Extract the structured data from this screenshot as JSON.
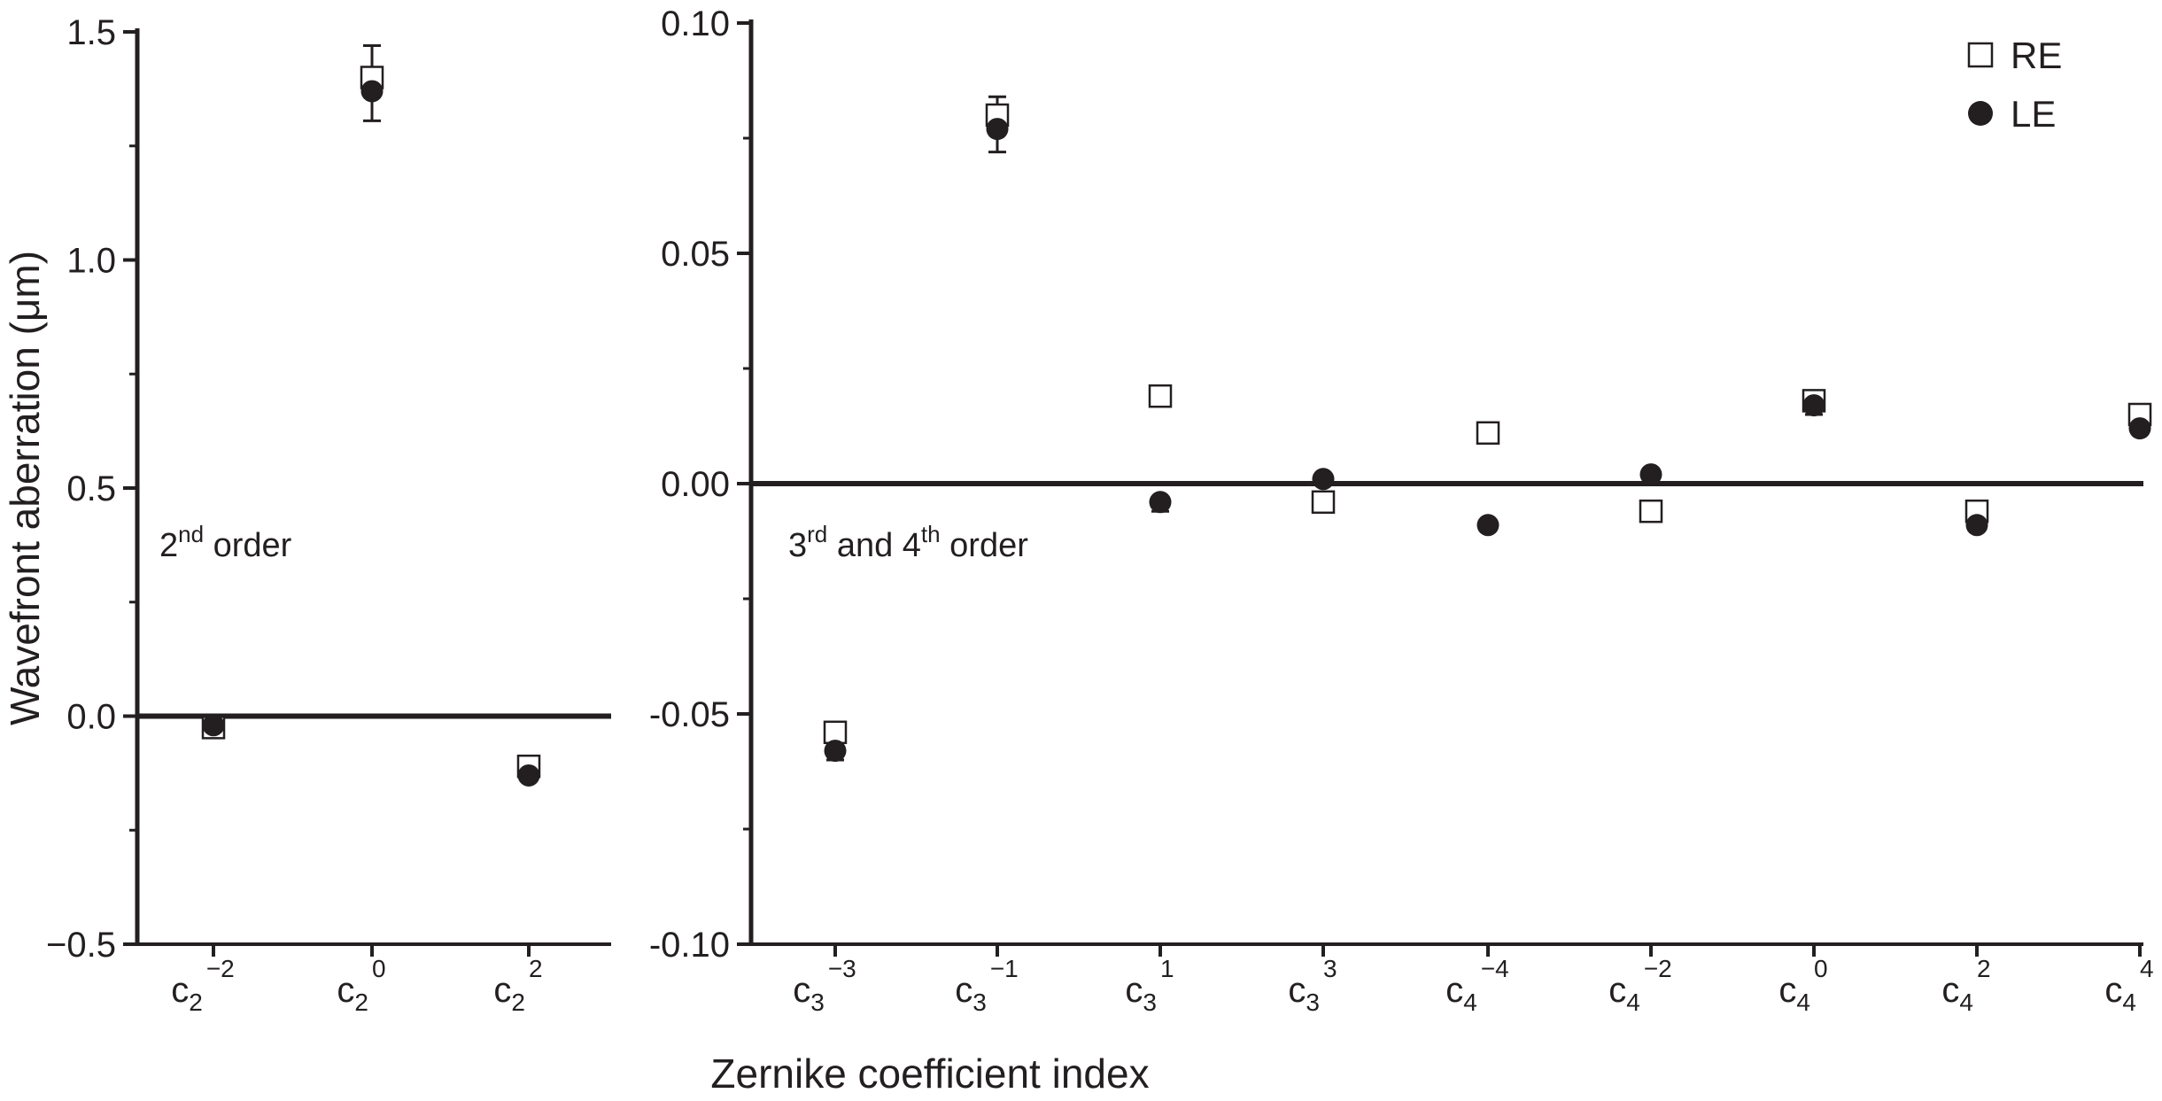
{
  "chart_data": [
    {
      "type": "scatter",
      "panel": "left",
      "ylabel": "Wavefront aberration (μm)",
      "ylim": [
        -0.5,
        1.5
      ],
      "yticks": [
        -0.5,
        0.0,
        0.5,
        1.0,
        1.5
      ],
      "ytick_labels": [
        "−0.5",
        "0.0",
        "0.5",
        "1.0",
        "1.5"
      ],
      "zero_line": true,
      "categories": [
        {
          "base": "c",
          "sub": "2",
          "sup": "−2"
        },
        {
          "base": "c",
          "sub": "2",
          "sup": "0"
        },
        {
          "base": "c",
          "sub": "2",
          "sup": "2"
        }
      ],
      "annotation": {
        "text": "2",
        "sup": "nd",
        "rest": " order"
      },
      "series": [
        {
          "name": "RE",
          "marker": "open-square",
          "values": [
            -0.025,
            1.4,
            -0.11
          ],
          "err": [
            0,
            0.07,
            0
          ]
        },
        {
          "name": "LE",
          "marker": "filled-circle",
          "values": [
            -0.02,
            1.37,
            -0.13
          ],
          "err": [
            0,
            0.065,
            0
          ]
        }
      ]
    },
    {
      "type": "scatter",
      "panel": "right",
      "ylim": [
        -0.1,
        0.1
      ],
      "yticks": [
        -0.1,
        -0.05,
        0.0,
        0.05,
        0.1
      ],
      "ytick_labels": [
        "-0.10",
        "-0.05",
        "0.00",
        "0.05",
        "0.10"
      ],
      "zero_line": true,
      "categories": [
        {
          "base": "c",
          "sub": "3",
          "sup": "−3"
        },
        {
          "base": "c",
          "sub": "3",
          "sup": "−1"
        },
        {
          "base": "c",
          "sub": "3",
          "sup": "1"
        },
        {
          "base": "c",
          "sub": "3",
          "sup": "3"
        },
        {
          "base": "c",
          "sub": "4",
          "sup": "−4"
        },
        {
          "base": "c",
          "sub": "4",
          "sup": "−2"
        },
        {
          "base": "c",
          "sub": "4",
          "sup": "0"
        },
        {
          "base": "c",
          "sub": "4",
          "sup": "2"
        },
        {
          "base": "c",
          "sub": "4",
          "sup": "4"
        }
      ],
      "annotation": {
        "text": "3",
        "sup": "rd",
        "rest": " and 4",
        "sup2": "th",
        "rest2": " order"
      },
      "legend_placement": "top-right",
      "series": [
        {
          "name": "RE",
          "marker": "open-square",
          "values": [
            -0.054,
            0.08,
            0.019,
            -0.004,
            0.011,
            -0.006,
            0.018,
            -0.006,
            0.015
          ],
          "err": [
            0.002,
            0.004,
            0.002,
            0,
            0,
            0,
            0.001,
            0,
            0
          ]
        },
        {
          "name": "LE",
          "marker": "filled-circle",
          "values": [
            -0.058,
            0.077,
            -0.004,
            0.001,
            -0.009,
            0.002,
            0.017,
            -0.009,
            0.012
          ],
          "err": [
            0.002,
            0.005,
            0.002,
            0,
            0,
            0,
            0.002,
            0,
            0
          ]
        }
      ]
    }
  ],
  "xlabel": "Zernike coefficient index",
  "legend": [
    {
      "label": "RE",
      "marker": "open-square"
    },
    {
      "label": "LE",
      "marker": "filled-circle"
    }
  ]
}
